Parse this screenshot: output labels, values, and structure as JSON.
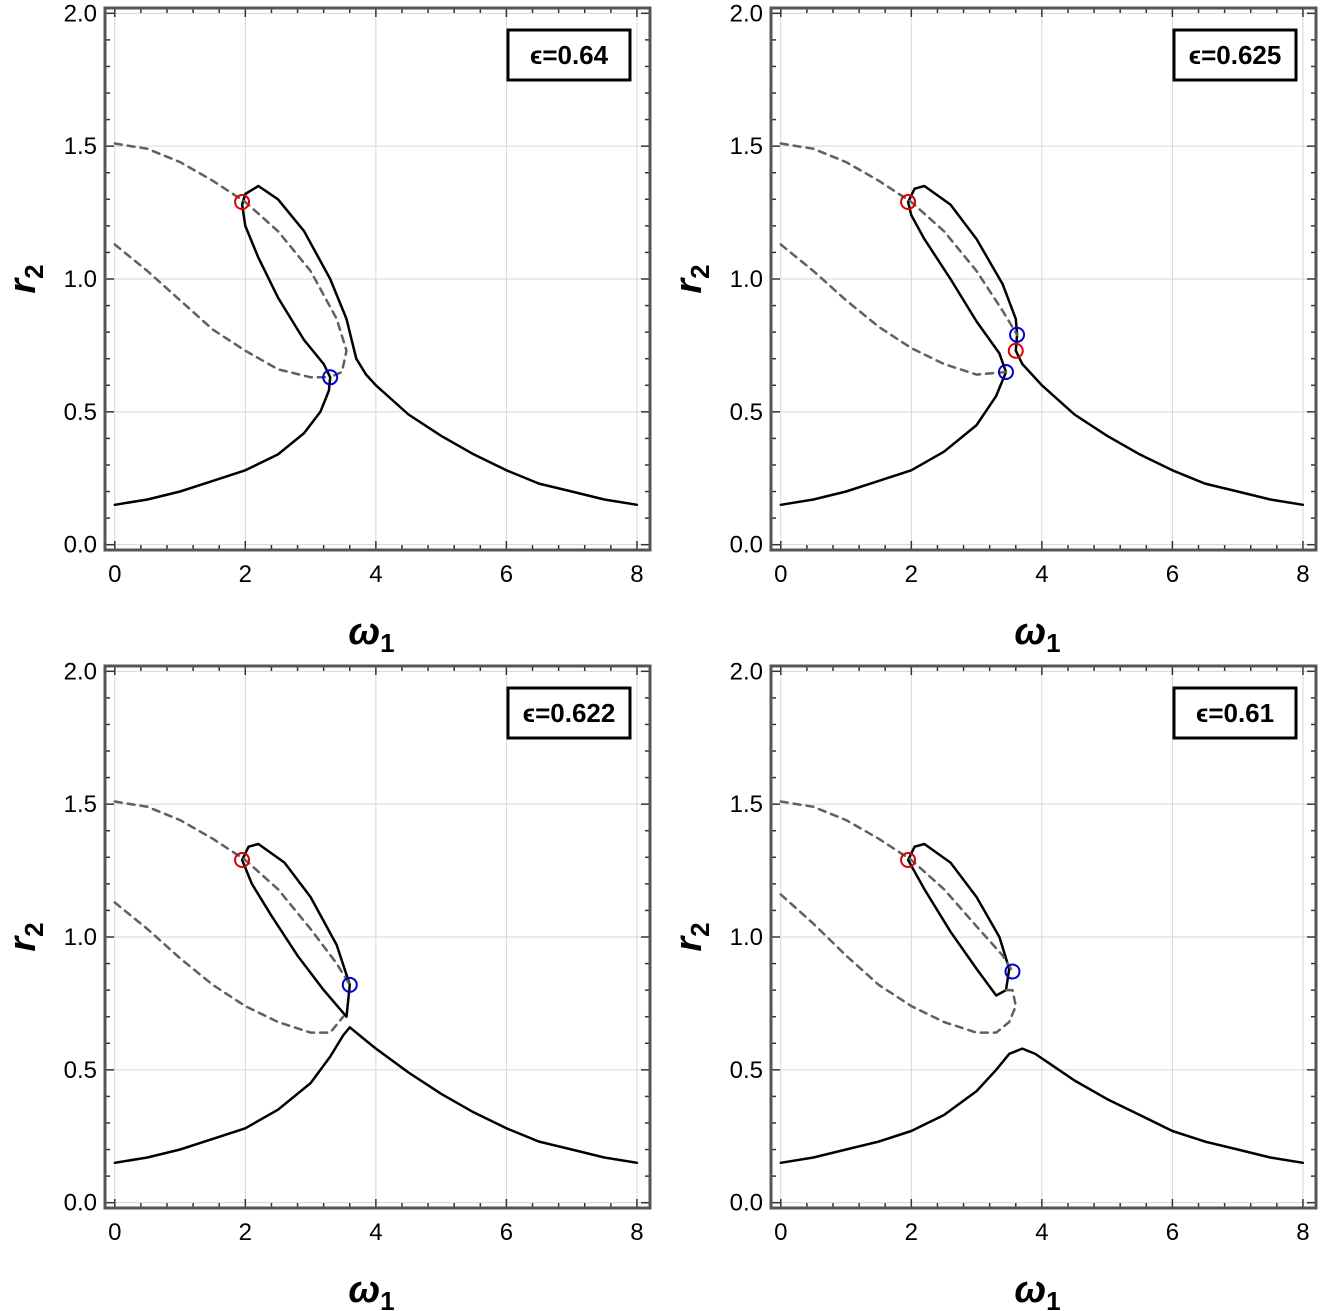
{
  "chart_data": [
    {
      "type": "line",
      "annotation": "ϵ=0.64",
      "xlabel": "ω",
      "xlabel_sub": "1",
      "ylabel": "r",
      "ylabel_sub": "2",
      "xlim": [
        -0.15,
        8.2
      ],
      "ylim": [
        -0.02,
        2.02
      ],
      "xticks": [
        0,
        2,
        4,
        6,
        8
      ],
      "yticks": [
        0.0,
        0.5,
        1.0,
        1.5,
        2.0
      ],
      "ytick_labels": [
        "0.0",
        "0.5",
        "1.0",
        "1.5",
        "2.0"
      ],
      "grid": true,
      "series": [
        {
          "style": "solid",
          "color": "#000000",
          "points": [
            [
              0,
              0.15
            ],
            [
              0.5,
              0.17
            ],
            [
              1,
              0.2
            ],
            [
              1.5,
              0.24
            ],
            [
              2,
              0.28
            ],
            [
              2.5,
              0.34
            ],
            [
              2.9,
              0.42
            ],
            [
              3.15,
              0.5
            ],
            [
              3.28,
              0.58
            ],
            [
              3.3,
              0.63
            ],
            [
              3.2,
              0.68
            ],
            [
              2.9,
              0.77
            ],
            [
              2.5,
              0.93
            ],
            [
              2.2,
              1.08
            ],
            [
              2.0,
              1.2
            ],
            [
              1.95,
              1.28
            ],
            [
              2.0,
              1.32
            ],
            [
              2.2,
              1.35
            ],
            [
              2.5,
              1.3
            ],
            [
              2.9,
              1.18
            ],
            [
              3.3,
              1.0
            ],
            [
              3.55,
              0.85
            ],
            [
              3.65,
              0.75
            ],
            [
              3.7,
              0.7
            ],
            [
              3.85,
              0.64
            ],
            [
              4,
              0.6
            ],
            [
              4.5,
              0.49
            ],
            [
              5,
              0.41
            ],
            [
              5.5,
              0.34
            ],
            [
              6,
              0.28
            ],
            [
              6.5,
              0.23
            ],
            [
              7,
              0.2
            ],
            [
              7.5,
              0.17
            ],
            [
              8,
              0.15
            ]
          ]
        },
        {
          "style": "dashed",
          "color": "#606060",
          "points": [
            [
              0,
              1.51
            ],
            [
              0.5,
              1.49
            ],
            [
              1,
              1.44
            ],
            [
              1.5,
              1.37
            ],
            [
              2,
              1.29
            ],
            [
              2.5,
              1.18
            ],
            [
              3,
              1.03
            ],
            [
              3.4,
              0.85
            ],
            [
              3.55,
              0.73
            ],
            [
              3.48,
              0.65
            ],
            [
              3.3,
              0.63
            ]
          ]
        },
        {
          "style": "dashed",
          "color": "#606060",
          "points": [
            [
              0,
              1.13
            ],
            [
              0.5,
              1.03
            ],
            [
              1,
              0.92
            ],
            [
              1.5,
              0.81
            ],
            [
              2,
              0.73
            ],
            [
              2.5,
              0.66
            ],
            [
              3,
              0.63
            ],
            [
              3.3,
              0.63
            ]
          ]
        }
      ],
      "markers": [
        {
          "x": 1.95,
          "y": 1.29,
          "color": "#dd0000"
        },
        {
          "x": 3.3,
          "y": 0.63,
          "color": "#0000cc"
        }
      ]
    },
    {
      "type": "line",
      "annotation": "ϵ=0.625",
      "xlabel": "ω",
      "xlabel_sub": "1",
      "ylabel": "r",
      "ylabel_sub": "2",
      "xlim": [
        -0.15,
        8.2
      ],
      "ylim": [
        -0.02,
        2.02
      ],
      "xticks": [
        0,
        2,
        4,
        6,
        8
      ],
      "yticks": [
        0.0,
        0.5,
        1.0,
        1.5,
        2.0
      ],
      "ytick_labels": [
        "0.0",
        "0.5",
        "1.0",
        "1.5",
        "2.0"
      ],
      "grid": true,
      "series": [
        {
          "style": "solid",
          "color": "#000000",
          "points": [
            [
              0,
              0.15
            ],
            [
              0.5,
              0.17
            ],
            [
              1,
              0.2
            ],
            [
              1.5,
              0.24
            ],
            [
              2,
              0.28
            ],
            [
              2.5,
              0.35
            ],
            [
              3,
              0.45
            ],
            [
              3.3,
              0.56
            ],
            [
              3.45,
              0.65
            ],
            [
              3.35,
              0.72
            ],
            [
              3.0,
              0.84
            ],
            [
              2.6,
              1.0
            ],
            [
              2.2,
              1.15
            ],
            [
              2.0,
              1.24
            ],
            [
              1.95,
              1.29
            ],
            [
              2.05,
              1.34
            ],
            [
              2.2,
              1.35
            ],
            [
              2.6,
              1.28
            ],
            [
              3.0,
              1.15
            ],
            [
              3.4,
              0.98
            ],
            [
              3.6,
              0.85
            ],
            [
              3.62,
              0.79
            ],
            [
              3.6,
              0.73
            ],
            [
              3.7,
              0.68
            ],
            [
              4,
              0.6
            ],
            [
              4.5,
              0.49
            ],
            [
              5,
              0.41
            ],
            [
              5.5,
              0.34
            ],
            [
              6,
              0.28
            ],
            [
              6.5,
              0.23
            ],
            [
              7,
              0.2
            ],
            [
              7.5,
              0.17
            ],
            [
              8,
              0.15
            ]
          ]
        },
        {
          "style": "dashed",
          "color": "#606060",
          "points": [
            [
              0,
              1.51
            ],
            [
              0.5,
              1.49
            ],
            [
              1,
              1.44
            ],
            [
              1.5,
              1.37
            ],
            [
              2,
              1.29
            ],
            [
              2.5,
              1.18
            ],
            [
              3,
              1.03
            ],
            [
              3.4,
              0.88
            ],
            [
              3.62,
              0.79
            ]
          ]
        },
        {
          "style": "dashed",
          "color": "#606060",
          "points": [
            [
              0,
              1.13
            ],
            [
              0.5,
              1.03
            ],
            [
              1,
              0.92
            ],
            [
              1.5,
              0.82
            ],
            [
              2,
              0.74
            ],
            [
              2.5,
              0.68
            ],
            [
              3,
              0.64
            ],
            [
              3.45,
              0.65
            ]
          ]
        }
      ],
      "markers": [
        {
          "x": 1.95,
          "y": 1.29,
          "color": "#dd0000"
        },
        {
          "x": 3.45,
          "y": 0.65,
          "color": "#0000cc"
        },
        {
          "x": 3.62,
          "y": 0.79,
          "color": "#0000cc"
        },
        {
          "x": 3.6,
          "y": 0.73,
          "color": "#dd0000"
        }
      ]
    },
    {
      "type": "line",
      "annotation": "ϵ=0.622",
      "xlabel": "ω",
      "xlabel_sub": "1",
      "ylabel": "r",
      "ylabel_sub": "2",
      "xlim": [
        -0.15,
        8.2
      ],
      "ylim": [
        -0.02,
        2.02
      ],
      "xticks": [
        0,
        2,
        4,
        6,
        8
      ],
      "yticks": [
        0.0,
        0.5,
        1.0,
        1.5,
        2.0
      ],
      "ytick_labels": [
        "0.0",
        "0.5",
        "1.0",
        "1.5",
        "2.0"
      ],
      "grid": true,
      "series": [
        {
          "style": "solid",
          "color": "#000000",
          "points": [
            [
              1.95,
              1.29
            ],
            [
              2.05,
              1.34
            ],
            [
              2.2,
              1.35
            ],
            [
              2.6,
              1.28
            ],
            [
              3.0,
              1.15
            ],
            [
              3.4,
              0.97
            ],
            [
              3.6,
              0.82
            ],
            [
              3.55,
              0.7
            ],
            [
              3.2,
              0.8
            ],
            [
              2.8,
              0.93
            ],
            [
              2.4,
              1.08
            ],
            [
              2.1,
              1.2
            ],
            [
              1.95,
              1.29
            ]
          ]
        },
        {
          "style": "solid",
          "color": "#000000",
          "points": [
            [
              0,
              0.15
            ],
            [
              0.5,
              0.17
            ],
            [
              1,
              0.2
            ],
            [
              1.5,
              0.24
            ],
            [
              2,
              0.28
            ],
            [
              2.5,
              0.35
            ],
            [
              3,
              0.45
            ],
            [
              3.3,
              0.55
            ],
            [
              3.5,
              0.63
            ],
            [
              3.6,
              0.66
            ],
            [
              3.8,
              0.62
            ],
            [
              4,
              0.58
            ],
            [
              4.5,
              0.49
            ],
            [
              5,
              0.41
            ],
            [
              5.5,
              0.34
            ],
            [
              6,
              0.28
            ],
            [
              6.5,
              0.23
            ],
            [
              7,
              0.2
            ],
            [
              7.5,
              0.17
            ],
            [
              8,
              0.15
            ]
          ]
        },
        {
          "style": "dashed",
          "color": "#606060",
          "points": [
            [
              0,
              1.51
            ],
            [
              0.5,
              1.49
            ],
            [
              1,
              1.44
            ],
            [
              1.5,
              1.37
            ],
            [
              2,
              1.29
            ],
            [
              2.5,
              1.18
            ],
            [
              3,
              1.03
            ],
            [
              3.4,
              0.9
            ],
            [
              3.6,
              0.82
            ]
          ]
        },
        {
          "style": "dashed",
          "color": "#606060",
          "points": [
            [
              0,
              1.13
            ],
            [
              0.5,
              1.03
            ],
            [
              1,
              0.92
            ],
            [
              1.5,
              0.82
            ],
            [
              2,
              0.74
            ],
            [
              2.5,
              0.68
            ],
            [
              3,
              0.64
            ],
            [
              3.3,
              0.64
            ],
            [
              3.5,
              0.7
            ]
          ]
        }
      ],
      "markers": [
        {
          "x": 1.95,
          "y": 1.29,
          "color": "#dd0000"
        },
        {
          "x": 3.6,
          "y": 0.82,
          "color": "#0000cc"
        }
      ]
    },
    {
      "type": "line",
      "annotation": "ϵ=0.61",
      "xlabel": "ω",
      "xlabel_sub": "1",
      "ylabel": "r",
      "ylabel_sub": "2",
      "xlim": [
        -0.15,
        8.2
      ],
      "ylim": [
        -0.02,
        2.02
      ],
      "xticks": [
        0,
        2,
        4,
        6,
        8
      ],
      "yticks": [
        0.0,
        0.5,
        1.0,
        1.5,
        2.0
      ],
      "ytick_labels": [
        "0.0",
        "0.5",
        "1.0",
        "1.5",
        "2.0"
      ],
      "grid": true,
      "series": [
        {
          "style": "solid",
          "color": "#000000",
          "points": [
            [
              1.95,
              1.29
            ],
            [
              2.05,
              1.34
            ],
            [
              2.2,
              1.35
            ],
            [
              2.6,
              1.28
            ],
            [
              3.0,
              1.15
            ],
            [
              3.35,
              1.0
            ],
            [
              3.5,
              0.88
            ],
            [
              3.45,
              0.8
            ],
            [
              3.3,
              0.78
            ],
            [
              3.0,
              0.88
            ],
            [
              2.6,
              1.02
            ],
            [
              2.2,
              1.18
            ],
            [
              1.95,
              1.29
            ]
          ]
        },
        {
          "style": "solid",
          "color": "#000000",
          "points": [
            [
              0,
              0.15
            ],
            [
              0.5,
              0.17
            ],
            [
              1,
              0.2
            ],
            [
              1.5,
              0.23
            ],
            [
              2,
              0.27
            ],
            [
              2.5,
              0.33
            ],
            [
              3,
              0.42
            ],
            [
              3.3,
              0.5
            ],
            [
              3.5,
              0.56
            ],
            [
              3.7,
              0.58
            ],
            [
              3.9,
              0.56
            ],
            [
              4.2,
              0.51
            ],
            [
              4.5,
              0.46
            ],
            [
              5,
              0.39
            ],
            [
              5.5,
              0.33
            ],
            [
              6,
              0.27
            ],
            [
              6.5,
              0.23
            ],
            [
              7,
              0.2
            ],
            [
              7.5,
              0.17
            ],
            [
              8,
              0.15
            ]
          ]
        },
        {
          "style": "dashed",
          "color": "#606060",
          "points": [
            [
              0,
              1.51
            ],
            [
              0.5,
              1.49
            ],
            [
              1,
              1.44
            ],
            [
              1.5,
              1.37
            ],
            [
              2,
              1.29
            ],
            [
              2.5,
              1.18
            ],
            [
              3,
              1.04
            ],
            [
              3.4,
              0.93
            ],
            [
              3.55,
              0.87
            ]
          ]
        },
        {
          "style": "dashed",
          "color": "#606060",
          "points": [
            [
              0,
              1.16
            ],
            [
              0.5,
              1.05
            ],
            [
              1,
              0.93
            ],
            [
              1.5,
              0.82
            ],
            [
              2,
              0.74
            ],
            [
              2.5,
              0.68
            ],
            [
              3,
              0.64
            ],
            [
              3.3,
              0.64
            ],
            [
              3.5,
              0.68
            ],
            [
              3.6,
              0.74
            ],
            [
              3.55,
              0.8
            ],
            [
              3.45,
              0.8
            ]
          ]
        }
      ],
      "markers": [
        {
          "x": 1.95,
          "y": 1.29,
          "color": "#dd0000"
        },
        {
          "x": 3.55,
          "y": 0.87,
          "color": "#0000cc"
        }
      ]
    }
  ]
}
